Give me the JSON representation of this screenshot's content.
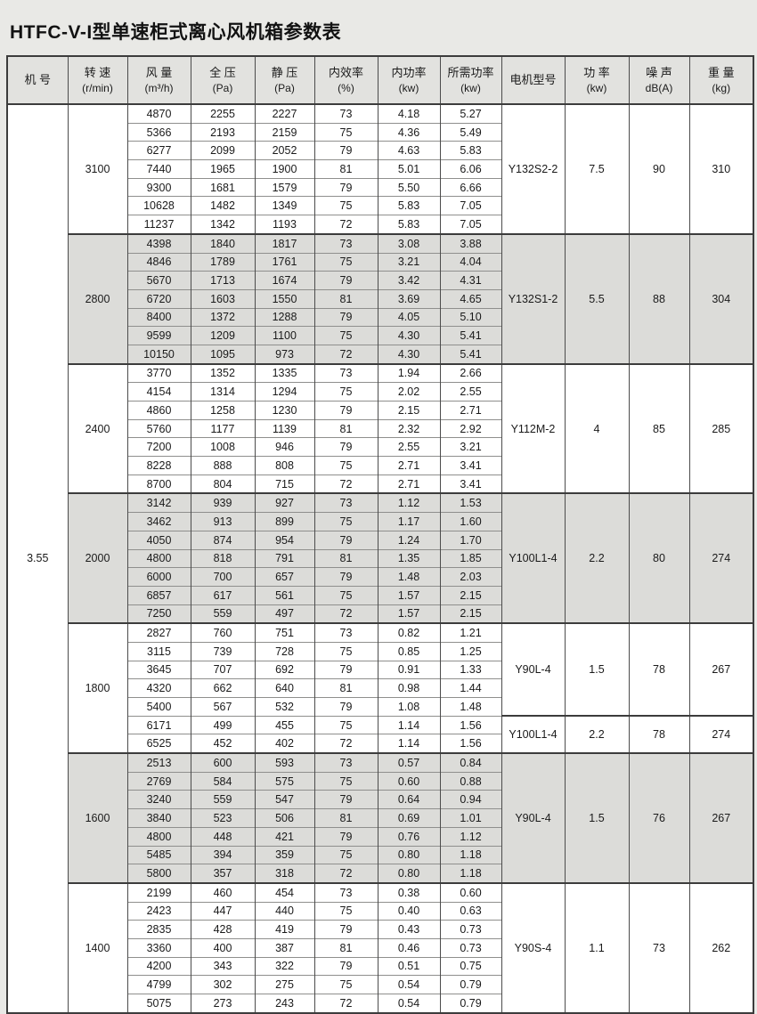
{
  "title": "HTFC-V-I型单速柜式离心风机箱参数表",
  "table": {
    "machine_no": "3.55",
    "columns": [
      {
        "label": "机 号",
        "sub": ""
      },
      {
        "label": "转 速",
        "sub": "(r/min)"
      },
      {
        "label": "风 量",
        "sub": "(m³/h)"
      },
      {
        "label": "全 压",
        "sub": "(Pa)"
      },
      {
        "label": "静 压",
        "sub": "(Pa)"
      },
      {
        "label": "内效率",
        "sub": "(%)"
      },
      {
        "label": "内功率",
        "sub": "(kw)"
      },
      {
        "label": "所需功率",
        "sub": "(kw)"
      },
      {
        "label": "电机型号",
        "sub": ""
      },
      {
        "label": "功 率",
        "sub": "(kw)"
      },
      {
        "label": "噪 声",
        "sub": "dB(A)"
      },
      {
        "label": "重 量",
        "sub": "(kg)"
      }
    ],
    "colors": {
      "page_background": "#e9e9e6",
      "header_background": "#e2e2df",
      "shaded_block_background": "#dcdcd9",
      "white_block_background": "#ffffff",
      "border_dark": "#3c3c3c",
      "border_thin": "#8f8f8d"
    },
    "blocks": [
      {
        "speed": "3100",
        "shaded": false,
        "rows": [
          [
            "4870",
            "2255",
            "2227",
            "73",
            "4.18",
            "5.27"
          ],
          [
            "5366",
            "2193",
            "2159",
            "75",
            "4.36",
            "5.49"
          ],
          [
            "6277",
            "2099",
            "2052",
            "79",
            "4.63",
            "5.83"
          ],
          [
            "7440",
            "1965",
            "1900",
            "81",
            "5.01",
            "6.06"
          ],
          [
            "9300",
            "1681",
            "1579",
            "79",
            "5.50",
            "6.66"
          ],
          [
            "10628",
            "1482",
            "1349",
            "75",
            "5.83",
            "7.05"
          ],
          [
            "11237",
            "1342",
            "1193",
            "72",
            "5.83",
            "7.05"
          ]
        ],
        "motor_groups": [
          {
            "rows": 7,
            "model": "Y132S2-2",
            "power": "7.5",
            "noise": "90",
            "weight": "310"
          }
        ]
      },
      {
        "speed": "2800",
        "shaded": true,
        "rows": [
          [
            "4398",
            "1840",
            "1817",
            "73",
            "3.08",
            "3.88"
          ],
          [
            "4846",
            "1789",
            "1761",
            "75",
            "3.21",
            "4.04"
          ],
          [
            "5670",
            "1713",
            "1674",
            "79",
            "3.42",
            "4.31"
          ],
          [
            "6720",
            "1603",
            "1550",
            "81",
            "3.69",
            "4.65"
          ],
          [
            "8400",
            "1372",
            "1288",
            "79",
            "4.05",
            "5.10"
          ],
          [
            "9599",
            "1209",
            "1100",
            "75",
            "4.30",
            "5.41"
          ],
          [
            "10150",
            "1095",
            "973",
            "72",
            "4.30",
            "5.41"
          ]
        ],
        "motor_groups": [
          {
            "rows": 7,
            "model": "Y132S1-2",
            "power": "5.5",
            "noise": "88",
            "weight": "304"
          }
        ]
      },
      {
        "speed": "2400",
        "shaded": false,
        "rows": [
          [
            "3770",
            "1352",
            "1335",
            "73",
            "1.94",
            "2.66"
          ],
          [
            "4154",
            "1314",
            "1294",
            "75",
            "2.02",
            "2.55"
          ],
          [
            "4860",
            "1258",
            "1230",
            "79",
            "2.15",
            "2.71"
          ],
          [
            "5760",
            "1177",
            "1139",
            "81",
            "2.32",
            "2.92"
          ],
          [
            "7200",
            "1008",
            "946",
            "79",
            "2.55",
            "3.21"
          ],
          [
            "8228",
            "888",
            "808",
            "75",
            "2.71",
            "3.41"
          ],
          [
            "8700",
            "804",
            "715",
            "72",
            "2.71",
            "3.41"
          ]
        ],
        "motor_groups": [
          {
            "rows": 7,
            "model": "Y112M-2",
            "power": "4",
            "noise": "85",
            "weight": "285"
          }
        ]
      },
      {
        "speed": "2000",
        "shaded": true,
        "rows": [
          [
            "3142",
            "939",
            "927",
            "73",
            "1.12",
            "1.53"
          ],
          [
            "3462",
            "913",
            "899",
            "75",
            "1.17",
            "1.60"
          ],
          [
            "4050",
            "874",
            "954",
            "79",
            "1.24",
            "1.70"
          ],
          [
            "4800",
            "818",
            "791",
            "81",
            "1.35",
            "1.85"
          ],
          [
            "6000",
            "700",
            "657",
            "79",
            "1.48",
            "2.03"
          ],
          [
            "6857",
            "617",
            "561",
            "75",
            "1.57",
            "2.15"
          ],
          [
            "7250",
            "559",
            "497",
            "72",
            "1.57",
            "2.15"
          ]
        ],
        "motor_groups": [
          {
            "rows": 7,
            "model": "Y100L1-4",
            "power": "2.2",
            "noise": "80",
            "weight": "274"
          }
        ]
      },
      {
        "speed": "1800",
        "shaded": false,
        "rows": [
          [
            "2827",
            "760",
            "751",
            "73",
            "0.82",
            "1.21"
          ],
          [
            "3115",
            "739",
            "728",
            "75",
            "0.85",
            "1.25"
          ],
          [
            "3645",
            "707",
            "692",
            "79",
            "0.91",
            "1.33"
          ],
          [
            "4320",
            "662",
            "640",
            "81",
            "0.98",
            "1.44"
          ],
          [
            "5400",
            "567",
            "532",
            "79",
            "1.08",
            "1.48"
          ],
          [
            "6171",
            "499",
            "455",
            "75",
            "1.14",
            "1.56"
          ],
          [
            "6525",
            "452",
            "402",
            "72",
            "1.14",
            "1.56"
          ]
        ],
        "motor_groups": [
          {
            "rows": 5,
            "model": "Y90L-4",
            "power": "1.5",
            "noise": "78",
            "weight": "267"
          },
          {
            "rows": 2,
            "model": "Y100L1-4",
            "power": "2.2",
            "noise": "78",
            "weight": "274"
          }
        ]
      },
      {
        "speed": "1600",
        "shaded": true,
        "rows": [
          [
            "2513",
            "600",
            "593",
            "73",
            "0.57",
            "0.84"
          ],
          [
            "2769",
            "584",
            "575",
            "75",
            "0.60",
            "0.88"
          ],
          [
            "3240",
            "559",
            "547",
            "79",
            "0.64",
            "0.94"
          ],
          [
            "3840",
            "523",
            "506",
            "81",
            "0.69",
            "1.01"
          ],
          [
            "4800",
            "448",
            "421",
            "79",
            "0.76",
            "1.12"
          ],
          [
            "5485",
            "394",
            "359",
            "75",
            "0.80",
            "1.18"
          ],
          [
            "5800",
            "357",
            "318",
            "72",
            "0.80",
            "1.18"
          ]
        ],
        "motor_groups": [
          {
            "rows": 7,
            "model": "Y90L-4",
            "power": "1.5",
            "noise": "76",
            "weight": "267"
          }
        ]
      },
      {
        "speed": "1400",
        "shaded": false,
        "rows": [
          [
            "2199",
            "460",
            "454",
            "73",
            "0.38",
            "0.60"
          ],
          [
            "2423",
            "447",
            "440",
            "75",
            "0.40",
            "0.63"
          ],
          [
            "2835",
            "428",
            "419",
            "79",
            "0.43",
            "0.73"
          ],
          [
            "3360",
            "400",
            "387",
            "81",
            "0.46",
            "0.73"
          ],
          [
            "4200",
            "343",
            "322",
            "79",
            "0.51",
            "0.75"
          ],
          [
            "4799",
            "302",
            "275",
            "75",
            "0.54",
            "0.79"
          ],
          [
            "5075",
            "273",
            "243",
            "72",
            "0.54",
            "0.79"
          ]
        ],
        "motor_groups": [
          {
            "rows": 7,
            "model": "Y90S-4",
            "power": "1.1",
            "noise": "73",
            "weight": "262"
          }
        ]
      }
    ]
  }
}
